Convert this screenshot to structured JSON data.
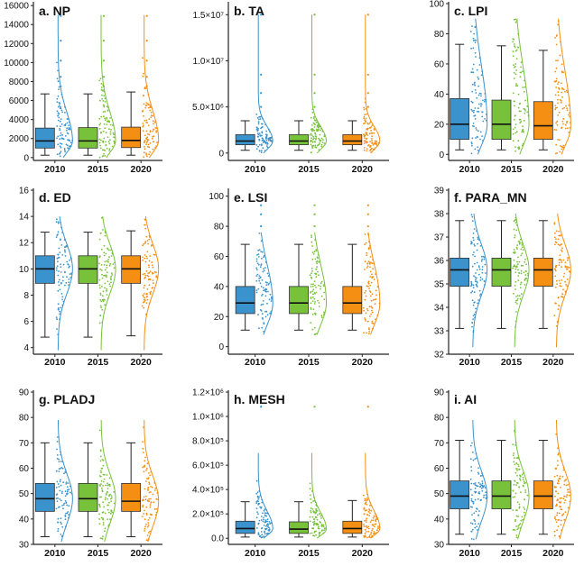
{
  "colors": {
    "2010": "#3a93cd",
    "2015": "#77c23a",
    "2020": "#f48f14",
    "axis": "#222222"
  },
  "chart_data": [
    {
      "type": "box",
      "title": "a. NP",
      "categories": [
        "2010",
        "2015",
        "2020"
      ],
      "ylim": [
        -300,
        16200
      ],
      "yticks": [
        {
          "v": 0,
          "label": "0"
        },
        {
          "v": 2000,
          "label": "2000"
        },
        {
          "v": 4000,
          "label": "4000"
        },
        {
          "v": 6000,
          "label": "6000"
        },
        {
          "v": 8000,
          "label": "8000"
        },
        {
          "v": 10000,
          "label": "10000"
        },
        {
          "v": 12000,
          "label": "12000"
        },
        {
          "v": 14000,
          "label": "14000"
        },
        {
          "v": 16000,
          "label": "16000"
        }
      ],
      "stats": [
        {
          "min": 250,
          "q1": 1000,
          "median": 1750,
          "q3": 3100,
          "max": 6700
        },
        {
          "min": 250,
          "q1": 1000,
          "median": 1750,
          "q3": 3150,
          "max": 6700
        },
        {
          "min": 250,
          "q1": 1050,
          "median": 1800,
          "q3": 3200,
          "max": 6900
        }
      ],
      "dist": {
        "kind": "skew",
        "min": 0,
        "max": 15000,
        "outliers": [
          7500,
          8500,
          10200,
          12300,
          14900
        ]
      }
    },
    {
      "type": "box",
      "title": "b. TA",
      "categories": [
        "2010",
        "2015",
        "2020"
      ],
      "ylim": [
        -800000,
        16200000
      ],
      "yticks": [
        {
          "v": 0,
          "label": "0"
        },
        {
          "v": 5000000,
          "label": "5.0×10⁶"
        },
        {
          "v": 10000000,
          "label": "1.0×10⁷"
        },
        {
          "v": 15000000,
          "label": "1.5×10⁷"
        }
      ],
      "stats": [
        {
          "min": 300000,
          "q1": 900000,
          "median": 1300000,
          "q3": 2000000,
          "max": 3500000
        },
        {
          "min": 300000,
          "q1": 900000,
          "median": 1300000,
          "q3": 2000000,
          "max": 3500000
        },
        {
          "min": 300000,
          "q1": 900000,
          "median": 1300000,
          "q3": 2000000,
          "max": 3500000
        }
      ],
      "dist": {
        "kind": "skew",
        "min": 0,
        "max": 15000000,
        "outliers": [
          5000000,
          6500000,
          8500000,
          15000000
        ]
      }
    },
    {
      "type": "box",
      "title": "c. LPI",
      "categories": [
        "2010",
        "2015",
        "2020"
      ],
      "ylim": [
        -4,
        100
      ],
      "yticks": [
        {
          "v": 0,
          "label": "0"
        },
        {
          "v": 20,
          "label": "20"
        },
        {
          "v": 40,
          "label": "40"
        },
        {
          "v": 60,
          "label": "60"
        },
        {
          "v": 80,
          "label": "80"
        },
        {
          "v": 100,
          "label": "100"
        }
      ],
      "stats": [
        {
          "min": 3,
          "q1": 10,
          "median": 20,
          "q3": 37,
          "max": 73
        },
        {
          "min": 3,
          "q1": 10,
          "median": 20,
          "q3": 36,
          "max": 72
        },
        {
          "min": 3,
          "q1": 10,
          "median": 19,
          "q3": 35,
          "max": 69
        }
      ],
      "dist": {
        "kind": "skew",
        "min": 0,
        "max": 90,
        "outliers": []
      }
    },
    {
      "type": "box",
      "title": "d. ED",
      "categories": [
        "2010",
        "2015",
        "2020"
      ],
      "ylim": [
        3.5,
        16
      ],
      "yticks": [
        {
          "v": 4,
          "label": "4"
        },
        {
          "v": 6,
          "label": "6"
        },
        {
          "v": 8,
          "label": "8"
        },
        {
          "v": 10,
          "label": "10"
        },
        {
          "v": 12,
          "label": "12"
        },
        {
          "v": 14,
          "label": "14"
        },
        {
          "v": 16,
          "label": "16"
        }
      ],
      "stats": [
        {
          "min": 4.8,
          "q1": 8.9,
          "median": 10,
          "q3": 11,
          "max": 12.8
        },
        {
          "min": 4.8,
          "q1": 8.9,
          "median": 10,
          "q3": 11,
          "max": 12.8
        },
        {
          "min": 4.9,
          "q1": 8.9,
          "median": 10,
          "q3": 11,
          "max": 12.9
        }
      ],
      "dist": {
        "kind": "sym",
        "min": 3.8,
        "max": 14,
        "outliers": []
      }
    },
    {
      "type": "box",
      "title": "e. LSI",
      "categories": [
        "2010",
        "2015",
        "2020"
      ],
      "ylim": [
        -5,
        104
      ],
      "yticks": [
        {
          "v": 0,
          "label": "0"
        },
        {
          "v": 20,
          "label": "20"
        },
        {
          "v": 40,
          "label": "40"
        },
        {
          "v": 60,
          "label": "60"
        },
        {
          "v": 80,
          "label": "80"
        },
        {
          "v": 100,
          "label": "100"
        }
      ],
      "stats": [
        {
          "min": 11,
          "q1": 22,
          "median": 29,
          "q3": 40,
          "max": 68
        },
        {
          "min": 11,
          "q1": 22,
          "median": 29,
          "q3": 40,
          "max": 68
        },
        {
          "min": 11,
          "q1": 22,
          "median": 29,
          "q3": 40,
          "max": 68
        }
      ],
      "dist": {
        "kind": "skew",
        "min": 8,
        "max": 76,
        "outliers": [
          80,
          88,
          94
        ]
      }
    },
    {
      "type": "box",
      "title": "f. PARA_MN",
      "categories": [
        "2010",
        "2015",
        "2020"
      ],
      "ylim": [
        32,
        39
      ],
      "yticks": [
        {
          "v": 32,
          "label": "32"
        },
        {
          "v": 33,
          "label": "33"
        },
        {
          "v": 34,
          "label": "34"
        },
        {
          "v": 35,
          "label": "35"
        },
        {
          "v": 36,
          "label": "36"
        },
        {
          "v": 37,
          "label": "37"
        },
        {
          "v": 38,
          "label": "38"
        },
        {
          "v": 39,
          "label": "39"
        }
      ],
      "stats": [
        {
          "min": 33.1,
          "q1": 34.9,
          "median": 35.6,
          "q3": 36.1,
          "max": 37.7
        },
        {
          "min": 33.1,
          "q1": 34.9,
          "median": 35.6,
          "q3": 36.1,
          "max": 37.7
        },
        {
          "min": 33.1,
          "q1": 34.9,
          "median": 35.6,
          "q3": 36.1,
          "max": 37.7
        }
      ],
      "dist": {
        "kind": "sym",
        "min": 32.3,
        "max": 38,
        "outliers": []
      }
    },
    {
      "type": "box",
      "title": "g. PLADJ",
      "categories": [
        "2010",
        "2015",
        "2020"
      ],
      "ylim": [
        30,
        90
      ],
      "yticks": [
        {
          "v": 30,
          "label": "30"
        },
        {
          "v": 40,
          "label": "40"
        },
        {
          "v": 50,
          "label": "50"
        },
        {
          "v": 60,
          "label": "60"
        },
        {
          "v": 70,
          "label": "70"
        },
        {
          "v": 80,
          "label": "80"
        },
        {
          "v": 90,
          "label": "90"
        }
      ],
      "stats": [
        {
          "min": 33,
          "q1": 43,
          "median": 48,
          "q3": 54,
          "max": 70
        },
        {
          "min": 33,
          "q1": 43,
          "median": 48,
          "q3": 54,
          "max": 70
        },
        {
          "min": 33,
          "q1": 43,
          "median": 47,
          "q3": 54,
          "max": 70
        }
      ],
      "dist": {
        "kind": "sym",
        "min": 31,
        "max": 79,
        "outliers": []
      }
    },
    {
      "type": "box",
      "title": "h. MESH",
      "categories": [
        "2010",
        "2015",
        "2020"
      ],
      "ylim": [
        -50000,
        1200000
      ],
      "yticks": [
        {
          "v": 0,
          "label": "0.0"
        },
        {
          "v": 200000,
          "label": "2.0×10⁵"
        },
        {
          "v": 400000,
          "label": "4.0×10⁵"
        },
        {
          "v": 600000,
          "label": "6.0×10⁵"
        },
        {
          "v": 800000,
          "label": "8.0×10⁵"
        },
        {
          "v": 1000000,
          "label": "1.0×10⁶"
        },
        {
          "v": 1200000,
          "label": "1.2×10⁶"
        }
      ],
      "stats": [
        {
          "min": 10000,
          "q1": 40000,
          "median": 80000,
          "q3": 140000,
          "max": 300000
        },
        {
          "min": 10000,
          "q1": 40000,
          "median": 75000,
          "q3": 135000,
          "max": 300000
        },
        {
          "min": 10000,
          "q1": 40000,
          "median": 80000,
          "q3": 140000,
          "max": 310000
        }
      ],
      "dist": {
        "kind": "skew",
        "min": 0,
        "max": 700000,
        "outliers": [
          1080000
        ]
      }
    },
    {
      "type": "box",
      "title": "i. AI",
      "categories": [
        "2010",
        "2015",
        "2020"
      ],
      "ylim": [
        30,
        90
      ],
      "yticks": [
        {
          "v": 30,
          "label": "30"
        },
        {
          "v": 40,
          "label": "40"
        },
        {
          "v": 50,
          "label": "50"
        },
        {
          "v": 60,
          "label": "60"
        },
        {
          "v": 70,
          "label": "70"
        },
        {
          "v": 80,
          "label": "80"
        },
        {
          "v": 90,
          "label": "90"
        }
      ],
      "stats": [
        {
          "min": 34,
          "q1": 44,
          "median": 49,
          "q3": 55,
          "max": 71
        },
        {
          "min": 34,
          "q1": 44,
          "median": 49,
          "q3": 55,
          "max": 71
        },
        {
          "min": 34,
          "q1": 44,
          "median": 49,
          "q3": 55,
          "max": 71
        }
      ],
      "dist": {
        "kind": "sym",
        "min": 32,
        "max": 79,
        "outliers": []
      }
    }
  ]
}
